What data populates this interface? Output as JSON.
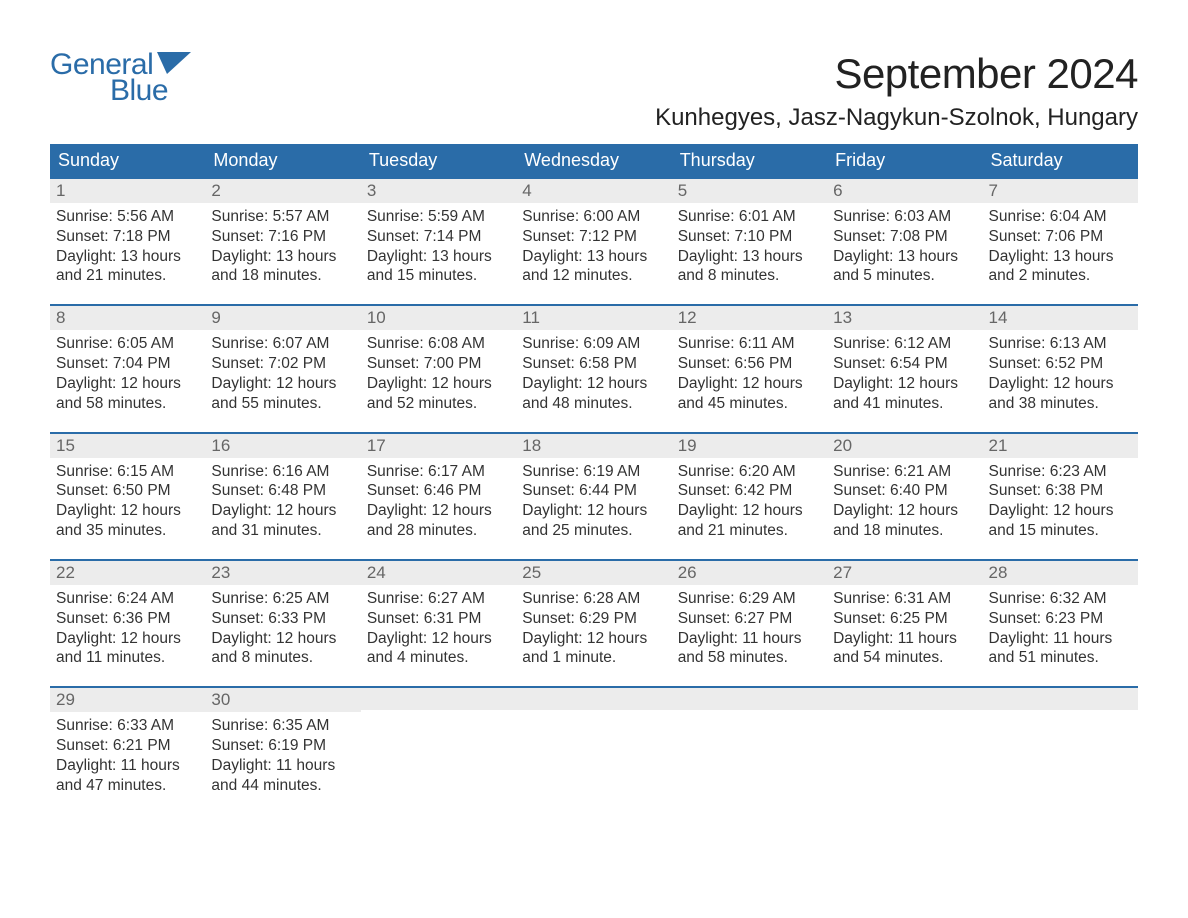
{
  "logo": {
    "text_general": "General",
    "text_blue": "Blue",
    "flag_color": "#2a6ca8"
  },
  "header": {
    "month_title": "September 2024",
    "location": "Kunhegyes, Jasz-Nagykun-Szolnok, Hungary"
  },
  "colors": {
    "header_bg": "#2a6ca8",
    "header_text": "#ffffff",
    "daynum_bg": "#ececec",
    "daynum_text": "#666666",
    "body_text": "#333333",
    "week_border": "#2a6ca8",
    "page_bg": "#ffffff"
  },
  "typography": {
    "month_title_fontsize": 42,
    "location_fontsize": 24,
    "weekday_fontsize": 18,
    "daynum_fontsize": 17,
    "body_fontsize": 15.5,
    "logo_fontsize": 30,
    "font_family": "Arial"
  },
  "weekdays": [
    "Sunday",
    "Monday",
    "Tuesday",
    "Wednesday",
    "Thursday",
    "Friday",
    "Saturday"
  ],
  "weeks": [
    [
      {
        "num": "1",
        "sunrise": "Sunrise: 5:56 AM",
        "sunset": "Sunset: 7:18 PM",
        "daylight1": "Daylight: 13 hours",
        "daylight2": "and 21 minutes."
      },
      {
        "num": "2",
        "sunrise": "Sunrise: 5:57 AM",
        "sunset": "Sunset: 7:16 PM",
        "daylight1": "Daylight: 13 hours",
        "daylight2": "and 18 minutes."
      },
      {
        "num": "3",
        "sunrise": "Sunrise: 5:59 AM",
        "sunset": "Sunset: 7:14 PM",
        "daylight1": "Daylight: 13 hours",
        "daylight2": "and 15 minutes."
      },
      {
        "num": "4",
        "sunrise": "Sunrise: 6:00 AM",
        "sunset": "Sunset: 7:12 PM",
        "daylight1": "Daylight: 13 hours",
        "daylight2": "and 12 minutes."
      },
      {
        "num": "5",
        "sunrise": "Sunrise: 6:01 AM",
        "sunset": "Sunset: 7:10 PM",
        "daylight1": "Daylight: 13 hours",
        "daylight2": "and 8 minutes."
      },
      {
        "num": "6",
        "sunrise": "Sunrise: 6:03 AM",
        "sunset": "Sunset: 7:08 PM",
        "daylight1": "Daylight: 13 hours",
        "daylight2": "and 5 minutes."
      },
      {
        "num": "7",
        "sunrise": "Sunrise: 6:04 AM",
        "sunset": "Sunset: 7:06 PM",
        "daylight1": "Daylight: 13 hours",
        "daylight2": "and 2 minutes."
      }
    ],
    [
      {
        "num": "8",
        "sunrise": "Sunrise: 6:05 AM",
        "sunset": "Sunset: 7:04 PM",
        "daylight1": "Daylight: 12 hours",
        "daylight2": "and 58 minutes."
      },
      {
        "num": "9",
        "sunrise": "Sunrise: 6:07 AM",
        "sunset": "Sunset: 7:02 PM",
        "daylight1": "Daylight: 12 hours",
        "daylight2": "and 55 minutes."
      },
      {
        "num": "10",
        "sunrise": "Sunrise: 6:08 AM",
        "sunset": "Sunset: 7:00 PM",
        "daylight1": "Daylight: 12 hours",
        "daylight2": "and 52 minutes."
      },
      {
        "num": "11",
        "sunrise": "Sunrise: 6:09 AM",
        "sunset": "Sunset: 6:58 PM",
        "daylight1": "Daylight: 12 hours",
        "daylight2": "and 48 minutes."
      },
      {
        "num": "12",
        "sunrise": "Sunrise: 6:11 AM",
        "sunset": "Sunset: 6:56 PM",
        "daylight1": "Daylight: 12 hours",
        "daylight2": "and 45 minutes."
      },
      {
        "num": "13",
        "sunrise": "Sunrise: 6:12 AM",
        "sunset": "Sunset: 6:54 PM",
        "daylight1": "Daylight: 12 hours",
        "daylight2": "and 41 minutes."
      },
      {
        "num": "14",
        "sunrise": "Sunrise: 6:13 AM",
        "sunset": "Sunset: 6:52 PM",
        "daylight1": "Daylight: 12 hours",
        "daylight2": "and 38 minutes."
      }
    ],
    [
      {
        "num": "15",
        "sunrise": "Sunrise: 6:15 AM",
        "sunset": "Sunset: 6:50 PM",
        "daylight1": "Daylight: 12 hours",
        "daylight2": "and 35 minutes."
      },
      {
        "num": "16",
        "sunrise": "Sunrise: 6:16 AM",
        "sunset": "Sunset: 6:48 PM",
        "daylight1": "Daylight: 12 hours",
        "daylight2": "and 31 minutes."
      },
      {
        "num": "17",
        "sunrise": "Sunrise: 6:17 AM",
        "sunset": "Sunset: 6:46 PM",
        "daylight1": "Daylight: 12 hours",
        "daylight2": "and 28 minutes."
      },
      {
        "num": "18",
        "sunrise": "Sunrise: 6:19 AM",
        "sunset": "Sunset: 6:44 PM",
        "daylight1": "Daylight: 12 hours",
        "daylight2": "and 25 minutes."
      },
      {
        "num": "19",
        "sunrise": "Sunrise: 6:20 AM",
        "sunset": "Sunset: 6:42 PM",
        "daylight1": "Daylight: 12 hours",
        "daylight2": "and 21 minutes."
      },
      {
        "num": "20",
        "sunrise": "Sunrise: 6:21 AM",
        "sunset": "Sunset: 6:40 PM",
        "daylight1": "Daylight: 12 hours",
        "daylight2": "and 18 minutes."
      },
      {
        "num": "21",
        "sunrise": "Sunrise: 6:23 AM",
        "sunset": "Sunset: 6:38 PM",
        "daylight1": "Daylight: 12 hours",
        "daylight2": "and 15 minutes."
      }
    ],
    [
      {
        "num": "22",
        "sunrise": "Sunrise: 6:24 AM",
        "sunset": "Sunset: 6:36 PM",
        "daylight1": "Daylight: 12 hours",
        "daylight2": "and 11 minutes."
      },
      {
        "num": "23",
        "sunrise": "Sunrise: 6:25 AM",
        "sunset": "Sunset: 6:33 PM",
        "daylight1": "Daylight: 12 hours",
        "daylight2": "and 8 minutes."
      },
      {
        "num": "24",
        "sunrise": "Sunrise: 6:27 AM",
        "sunset": "Sunset: 6:31 PM",
        "daylight1": "Daylight: 12 hours",
        "daylight2": "and 4 minutes."
      },
      {
        "num": "25",
        "sunrise": "Sunrise: 6:28 AM",
        "sunset": "Sunset: 6:29 PM",
        "daylight1": "Daylight: 12 hours",
        "daylight2": "and 1 minute."
      },
      {
        "num": "26",
        "sunrise": "Sunrise: 6:29 AM",
        "sunset": "Sunset: 6:27 PM",
        "daylight1": "Daylight: 11 hours",
        "daylight2": "and 58 minutes."
      },
      {
        "num": "27",
        "sunrise": "Sunrise: 6:31 AM",
        "sunset": "Sunset: 6:25 PM",
        "daylight1": "Daylight: 11 hours",
        "daylight2": "and 54 minutes."
      },
      {
        "num": "28",
        "sunrise": "Sunrise: 6:32 AM",
        "sunset": "Sunset: 6:23 PM",
        "daylight1": "Daylight: 11 hours",
        "daylight2": "and 51 minutes."
      }
    ],
    [
      {
        "num": "29",
        "sunrise": "Sunrise: 6:33 AM",
        "sunset": "Sunset: 6:21 PM",
        "daylight1": "Daylight: 11 hours",
        "daylight2": "and 47 minutes."
      },
      {
        "num": "30",
        "sunrise": "Sunrise: 6:35 AM",
        "sunset": "Sunset: 6:19 PM",
        "daylight1": "Daylight: 11 hours",
        "daylight2": "and 44 minutes."
      },
      {
        "num": "",
        "sunrise": "",
        "sunset": "",
        "daylight1": "",
        "daylight2": ""
      },
      {
        "num": "",
        "sunrise": "",
        "sunset": "",
        "daylight1": "",
        "daylight2": ""
      },
      {
        "num": "",
        "sunrise": "",
        "sunset": "",
        "daylight1": "",
        "daylight2": ""
      },
      {
        "num": "",
        "sunrise": "",
        "sunset": "",
        "daylight1": "",
        "daylight2": ""
      },
      {
        "num": "",
        "sunrise": "",
        "sunset": "",
        "daylight1": "",
        "daylight2": ""
      }
    ]
  ]
}
